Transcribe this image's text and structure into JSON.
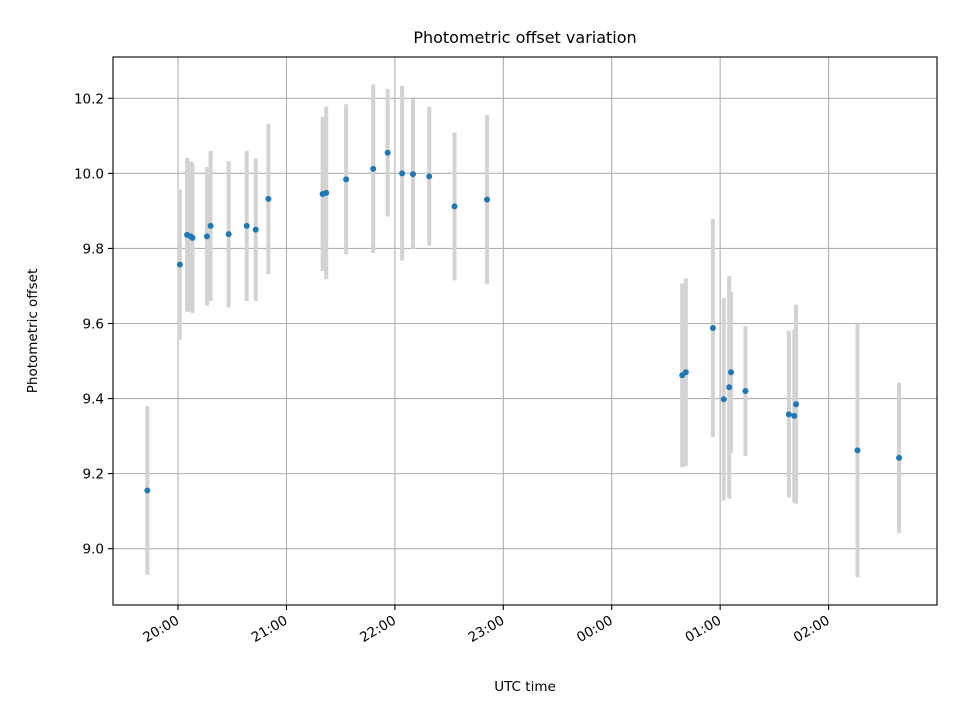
{
  "chart_data": {
    "type": "scatter",
    "title": "Photometric offset variation",
    "xlabel": "UTC time",
    "ylabel": "Photometric offset",
    "x_tick_labels": [
      "20:00",
      "21:00",
      "22:00",
      "23:00",
      "00:00",
      "01:00",
      "02:00"
    ],
    "x_ticks": [
      "2000-01-01T20:00",
      "2000-01-01T21:00",
      "2000-01-01T22:00",
      "2000-01-01T23:00",
      "2000-01-02T00:00",
      "2000-01-02T01:00",
      "2000-01-02T02:00"
    ],
    "xlim": [
      "2000-01-01T19:24",
      "2000-01-02T03:00"
    ],
    "y_ticks": [
      9.0,
      9.2,
      9.4,
      9.6,
      9.8,
      10.0,
      10.2
    ],
    "ylim": [
      8.85,
      10.31
    ],
    "grid": true,
    "point_color": "#1f77b4",
    "errorbar_color": "#d3d3d3",
    "points": [
      {
        "x": "2000-01-01T19:43",
        "y": 9.155,
        "err": 0.225
      },
      {
        "x": "2000-01-01T20:01",
        "y": 9.757,
        "err": 0.2
      },
      {
        "x": "2000-01-01T20:05",
        "y": 9.836,
        "err": 0.205
      },
      {
        "x": "2000-01-01T20:07",
        "y": 9.832,
        "err": 0.2
      },
      {
        "x": "2000-01-01T20:08",
        "y": 9.828,
        "err": 0.2
      },
      {
        "x": "2000-01-01T20:16",
        "y": 9.832,
        "err": 0.185
      },
      {
        "x": "2000-01-01T20:18",
        "y": 9.86,
        "err": 0.2
      },
      {
        "x": "2000-01-01T20:28",
        "y": 9.838,
        "err": 0.195
      },
      {
        "x": "2000-01-01T20:38",
        "y": 9.86,
        "err": 0.2
      },
      {
        "x": "2000-01-01T20:43",
        "y": 9.85,
        "err": 0.19
      },
      {
        "x": "2000-01-01T20:50",
        "y": 9.932,
        "err": 0.2
      },
      {
        "x": "2000-01-01T21:20",
        "y": 9.945,
        "err": 0.205
      },
      {
        "x": "2000-01-01T21:22",
        "y": 9.948,
        "err": 0.23
      },
      {
        "x": "2000-01-01T21:33",
        "y": 9.984,
        "err": 0.2
      },
      {
        "x": "2000-01-01T21:48",
        "y": 10.012,
        "err": 0.225
      },
      {
        "x": "2000-01-01T21:56",
        "y": 10.055,
        "err": 0.17
      },
      {
        "x": "2000-01-01T22:04",
        "y": 10.0,
        "err": 0.233
      },
      {
        "x": "2000-01-01T22:10",
        "y": 9.998,
        "err": 0.2
      },
      {
        "x": "2000-01-01T22:19",
        "y": 9.992,
        "err": 0.185
      },
      {
        "x": "2000-01-01T22:33",
        "y": 9.912,
        "err": 0.197
      },
      {
        "x": "2000-01-01T22:51",
        "y": 9.93,
        "err": 0.225
      },
      {
        "x": "2000-01-02T00:39",
        "y": 9.462,
        "err": 0.245
      },
      {
        "x": "2000-01-02T00:41",
        "y": 9.47,
        "err": 0.25
      },
      {
        "x": "2000-01-02T00:56",
        "y": 9.588,
        "err": 0.29
      },
      {
        "x": "2000-01-02T01:02",
        "y": 9.398,
        "err": 0.27
      },
      {
        "x": "2000-01-02T01:05",
        "y": 9.43,
        "err": 0.297
      },
      {
        "x": "2000-01-02T01:06",
        "y": 9.47,
        "err": 0.215
      },
      {
        "x": "2000-01-02T01:14",
        "y": 9.42,
        "err": 0.173
      },
      {
        "x": "2000-01-02T01:38",
        "y": 9.358,
        "err": 0.222
      },
      {
        "x": "2000-01-02T01:41",
        "y": 9.354,
        "err": 0.23
      },
      {
        "x": "2000-01-02T01:42",
        "y": 9.385,
        "err": 0.265
      },
      {
        "x": "2000-01-02T02:16",
        "y": 9.262,
        "err": 0.338
      },
      {
        "x": "2000-01-02T02:39",
        "y": 9.242,
        "err": 0.2
      }
    ]
  }
}
